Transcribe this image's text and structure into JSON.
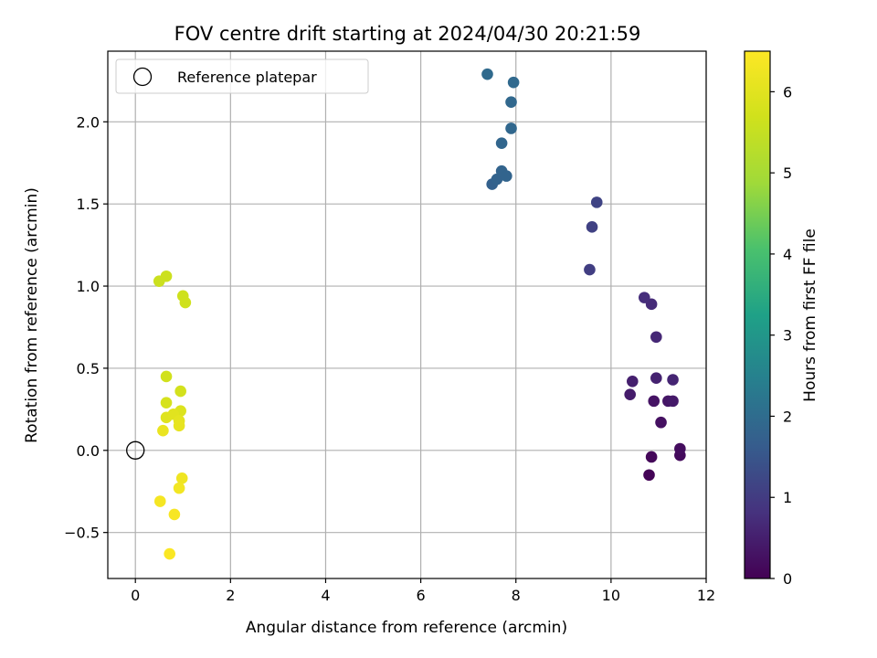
{
  "chart_data": {
    "type": "scatter",
    "title": "FOV centre drift starting at 2024/04/30 20:21:59",
    "xlabel": "Angular distance from reference (arcmin)",
    "ylabel": "Rotation from reference (arcmin)",
    "xlim": [
      -0.58,
      12.0
    ],
    "ylim": [
      -0.78,
      2.43
    ],
    "xticks": [
      0,
      2,
      4,
      6,
      8,
      10,
      12
    ],
    "xtick_labels": [
      "0",
      "2",
      "4",
      "6",
      "8",
      "10",
      "12"
    ],
    "yticks": [
      -0.5,
      0.0,
      0.5,
      1.0,
      1.5,
      2.0
    ],
    "ytick_labels": [
      "−0.5",
      "0.0",
      "0.5",
      "1.0",
      "1.5",
      "2.0"
    ],
    "grid": true,
    "legend": {
      "placement": "top-left",
      "entries": [
        "Reference platepar"
      ]
    },
    "reference_point": {
      "x": 0.0,
      "y": 0.0
    },
    "colorbar": {
      "label": "Hours from first FF file",
      "range": [
        0,
        6.5
      ],
      "ticks": [
        0,
        1,
        2,
        3,
        4,
        5,
        6
      ],
      "tick_labels": [
        "0",
        "1",
        "2",
        "3",
        "4",
        "5",
        "6"
      ],
      "colormap": "viridis"
    },
    "points": [
      {
        "x": 10.8,
        "y": -0.15,
        "hours": 0.05
      },
      {
        "x": 10.85,
        "y": -0.04,
        "hours": 0.1
      },
      {
        "x": 11.45,
        "y": -0.03,
        "hours": 0.15
      },
      {
        "x": 11.45,
        "y": 0.01,
        "hours": 0.2
      },
      {
        "x": 11.05,
        "y": 0.17,
        "hours": 0.25
      },
      {
        "x": 10.9,
        "y": 0.3,
        "hours": 0.3
      },
      {
        "x": 11.2,
        "y": 0.3,
        "hours": 0.35
      },
      {
        "x": 11.3,
        "y": 0.3,
        "hours": 0.4
      },
      {
        "x": 10.4,
        "y": 0.34,
        "hours": 0.45
      },
      {
        "x": 10.45,
        "y": 0.42,
        "hours": 0.5
      },
      {
        "x": 10.95,
        "y": 0.44,
        "hours": 0.55
      },
      {
        "x": 11.3,
        "y": 0.43,
        "hours": 0.6
      },
      {
        "x": 10.95,
        "y": 0.69,
        "hours": 0.65
      },
      {
        "x": 10.85,
        "y": 0.89,
        "hours": 0.7
      },
      {
        "x": 10.7,
        "y": 0.93,
        "hours": 0.75
      },
      {
        "x": 9.55,
        "y": 1.1,
        "hours": 1.05
      },
      {
        "x": 9.6,
        "y": 1.36,
        "hours": 1.1
      },
      {
        "x": 9.7,
        "y": 1.51,
        "hours": 1.15
      },
      {
        "x": 7.5,
        "y": 1.62,
        "hours": 1.75
      },
      {
        "x": 7.6,
        "y": 1.65,
        "hours": 1.78
      },
      {
        "x": 7.7,
        "y": 1.7,
        "hours": 1.8
      },
      {
        "x": 7.8,
        "y": 1.67,
        "hours": 1.82
      },
      {
        "x": 7.7,
        "y": 1.87,
        "hours": 1.85
      },
      {
        "x": 7.9,
        "y": 1.96,
        "hours": 1.87
      },
      {
        "x": 7.9,
        "y": 2.12,
        "hours": 1.9
      },
      {
        "x": 7.95,
        "y": 2.24,
        "hours": 1.92
      },
      {
        "x": 7.4,
        "y": 2.29,
        "hours": 1.95
      },
      {
        "x": 0.5,
        "y": 1.03,
        "hours": 5.6
      },
      {
        "x": 0.65,
        "y": 1.06,
        "hours": 5.62
      },
      {
        "x": 1.0,
        "y": 0.94,
        "hours": 5.65
      },
      {
        "x": 1.05,
        "y": 0.9,
        "hours": 5.67
      },
      {
        "x": 0.65,
        "y": 0.45,
        "hours": 5.7
      },
      {
        "x": 0.95,
        "y": 0.36,
        "hours": 5.75
      },
      {
        "x": 0.65,
        "y": 0.29,
        "hours": 5.8
      },
      {
        "x": 0.95,
        "y": 0.24,
        "hours": 5.9
      },
      {
        "x": 0.65,
        "y": 0.2,
        "hours": 5.95
      },
      {
        "x": 0.8,
        "y": 0.22,
        "hours": 6.0
      },
      {
        "x": 0.92,
        "y": 0.18,
        "hours": 6.05
      },
      {
        "x": 0.92,
        "y": 0.15,
        "hours": 6.1
      },
      {
        "x": 0.58,
        "y": 0.12,
        "hours": 6.15
      },
      {
        "x": 0.98,
        "y": -0.17,
        "hours": 6.25
      },
      {
        "x": 0.92,
        "y": -0.23,
        "hours": 6.3
      },
      {
        "x": 0.52,
        "y": -0.31,
        "hours": 6.35
      },
      {
        "x": 0.82,
        "y": -0.39,
        "hours": 6.4
      },
      {
        "x": 0.72,
        "y": -0.63,
        "hours": 6.45
      }
    ]
  }
}
